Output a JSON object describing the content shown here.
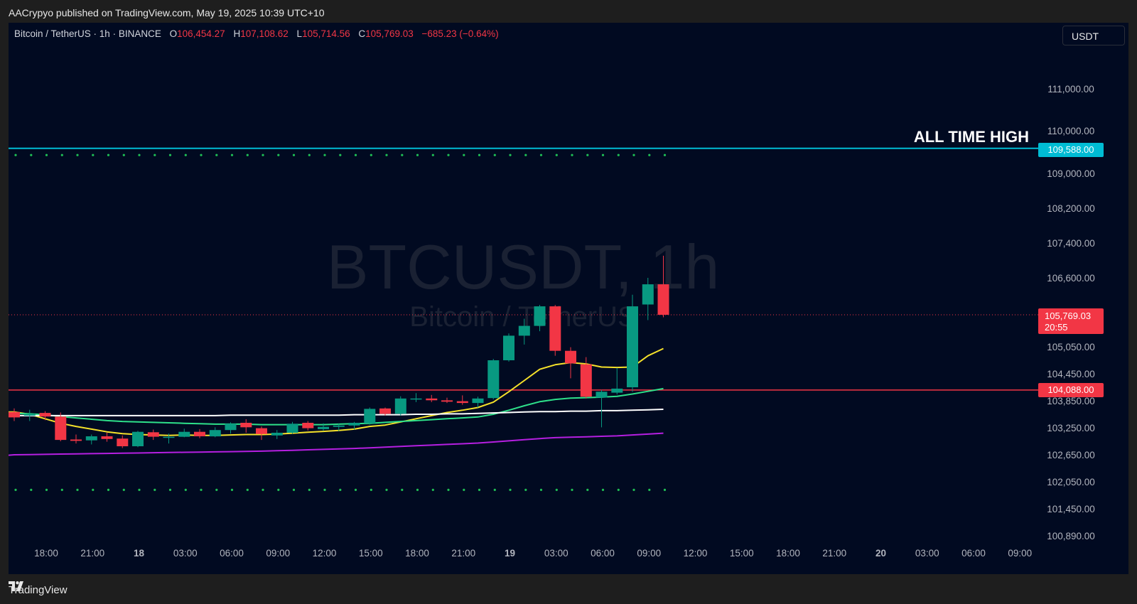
{
  "header": {
    "publisher_line": "AACrypyo published on TradingView.com, May 19, 2025 10:39 UTC+10"
  },
  "legend": {
    "symbol": "Bitcoin / TetherUS · 1h · BINANCE",
    "open_label": "O",
    "open": "106,454.27",
    "high_label": "H",
    "high": "107,108.62",
    "low_label": "L",
    "low": "105,714.56",
    "close_label": "C",
    "close": "105,769.03",
    "change": "−685.23 (−0.64%)"
  },
  "currency_button": "USDT",
  "watermark": {
    "ticker": "BTCUSDT, 1h",
    "name": "Bitcoin / TetherUS"
  },
  "annotation": "ALL TIME HIGH",
  "price_badges": {
    "ath": "109,588.00",
    "last": "105,769.03",
    "countdown": "20:55",
    "support": "104,088.00"
  },
  "footer": {
    "brand": "TradingView"
  },
  "colors": {
    "background": "#010a21",
    "up": "#089981",
    "down": "#f23645",
    "ath_line": "#00bcd4",
    "support_line": "#f23645",
    "ma_yellow": "#f5e12a",
    "ma_green": "#2ee08a",
    "ma_white": "#ffffff",
    "ma_purple": "#b51fe0",
    "dots": "#1fbf55"
  },
  "chart_data": {
    "type": "candlestick",
    "title": "Bitcoin / TetherUS · 1h · BINANCE",
    "y_ticks": [
      111000,
      110000,
      109000,
      108200,
      107400,
      106600,
      105050,
      104450,
      103850,
      103250,
      102650,
      102050,
      101450,
      100890
    ],
    "y_tick_labels": [
      "111,000.00",
      "110,000.00",
      "109,000.00",
      "108,200.00",
      "107,400.00",
      "106,600.00",
      "105,050.00",
      "104,450.00",
      "103,850.00",
      "103,250.00",
      "102,650.00",
      "102,050.00",
      "101,450.00",
      "100,890.00"
    ],
    "x_tick_labels": [
      "18:00",
      "21:00",
      "18",
      "03:00",
      "06:00",
      "09:00",
      "12:00",
      "15:00",
      "18:00",
      "21:00",
      "19",
      "03:00",
      "06:00",
      "09:00",
      "12:00",
      "15:00",
      "18:00",
      "21:00",
      "20",
      "03:00",
      "06:00",
      "09:00"
    ],
    "x_tick_hours": [
      0,
      3,
      6,
      9,
      12,
      15,
      18,
      21,
      24,
      27,
      30,
      33,
      36,
      39,
      42,
      45,
      48,
      51,
      54,
      57,
      60,
      63
    ],
    "horizontal_levels": [
      {
        "price": 109588,
        "label": "109,588.00"
      },
      {
        "price": 104088,
        "label": "104,088.00"
      }
    ],
    "candles": [
      {
        "o": 103600,
        "h": 103680,
        "l": 103400,
        "c": 103480
      },
      {
        "o": 103520,
        "h": 103650,
        "l": 103400,
        "c": 103560
      },
      {
        "o": 103580,
        "h": 103620,
        "l": 103420,
        "c": 103500
      },
      {
        "o": 103500,
        "h": 103590,
        "l": 102950,
        "c": 102980
      },
      {
        "o": 102990,
        "h": 103100,
        "l": 102900,
        "c": 102960
      },
      {
        "o": 102970,
        "h": 103100,
        "l": 102880,
        "c": 103060
      },
      {
        "o": 103060,
        "h": 103140,
        "l": 102940,
        "c": 103000
      },
      {
        "o": 103010,
        "h": 103080,
        "l": 102800,
        "c": 102840
      },
      {
        "o": 102840,
        "h": 103180,
        "l": 102820,
        "c": 103160
      },
      {
        "o": 103150,
        "h": 103210,
        "l": 102980,
        "c": 103050
      },
      {
        "o": 103050,
        "h": 103120,
        "l": 102900,
        "c": 103050
      },
      {
        "o": 103050,
        "h": 103230,
        "l": 103040,
        "c": 103160
      },
      {
        "o": 103160,
        "h": 103220,
        "l": 103020,
        "c": 103060
      },
      {
        "o": 103060,
        "h": 103260,
        "l": 103040,
        "c": 103200
      },
      {
        "o": 103200,
        "h": 103370,
        "l": 103120,
        "c": 103340
      },
      {
        "o": 103360,
        "h": 103440,
        "l": 103140,
        "c": 103260
      },
      {
        "o": 103240,
        "h": 103280,
        "l": 102980,
        "c": 103110
      },
      {
        "o": 103080,
        "h": 103200,
        "l": 103000,
        "c": 103140
      },
      {
        "o": 103140,
        "h": 103380,
        "l": 103120,
        "c": 103340
      },
      {
        "o": 103360,
        "h": 103400,
        "l": 103190,
        "c": 103240
      },
      {
        "o": 103220,
        "h": 103350,
        "l": 103180,
        "c": 103270
      },
      {
        "o": 103270,
        "h": 103340,
        "l": 103180,
        "c": 103300
      },
      {
        "o": 103300,
        "h": 103380,
        "l": 103210,
        "c": 103360
      },
      {
        "o": 103350,
        "h": 103700,
        "l": 103320,
        "c": 103670
      },
      {
        "o": 103680,
        "h": 103700,
        "l": 103520,
        "c": 103560
      },
      {
        "o": 103560,
        "h": 103950,
        "l": 103520,
        "c": 103900
      },
      {
        "o": 103900,
        "h": 104020,
        "l": 103820,
        "c": 103900
      },
      {
        "o": 103900,
        "h": 103980,
        "l": 103820,
        "c": 103860
      },
      {
        "o": 103860,
        "h": 103920,
        "l": 103800,
        "c": 103830
      },
      {
        "o": 103840,
        "h": 103970,
        "l": 103760,
        "c": 103800
      },
      {
        "o": 103800,
        "h": 103940,
        "l": 103700,
        "c": 103900
      },
      {
        "o": 103910,
        "h": 104780,
        "l": 103880,
        "c": 104750
      },
      {
        "o": 104750,
        "h": 105350,
        "l": 104720,
        "c": 105300
      },
      {
        "o": 105300,
        "h": 105680,
        "l": 105100,
        "c": 105520
      },
      {
        "o": 105520,
        "h": 105990,
        "l": 105400,
        "c": 105960
      },
      {
        "o": 105960,
        "h": 105990,
        "l": 104850,
        "c": 104960
      },
      {
        "o": 104960,
        "h": 105040,
        "l": 104350,
        "c": 104680
      },
      {
        "o": 104660,
        "h": 104820,
        "l": 103900,
        "c": 103940
      },
      {
        "o": 103920,
        "h": 104090,
        "l": 103260,
        "c": 104050
      },
      {
        "o": 104030,
        "h": 104580,
        "l": 103990,
        "c": 104120
      },
      {
        "o": 104150,
        "h": 106220,
        "l": 104050,
        "c": 105960
      },
      {
        "o": 106000,
        "h": 106600,
        "l": 105650,
        "c": 106454
      },
      {
        "o": 106454,
        "h": 107108,
        "l": 105714,
        "c": 105769
      }
    ],
    "series": [
      {
        "name": "",
        "color": "#f5e12a",
        "values": [
          103600,
          103550,
          103450,
          103350,
          103280,
          103220,
          103160,
          103120,
          103100,
          103090,
          103080,
          103090,
          103080,
          103080,
          103090,
          103100,
          103100,
          103110,
          103130,
          103150,
          103170,
          103190,
          103220,
          103280,
          103310,
          103380,
          103450,
          103520,
          103590,
          103640,
          103700,
          103820,
          104050,
          104300,
          104550,
          104650,
          104700,
          104670,
          104600,
          104590,
          104600,
          104850,
          105010
        ]
      },
      {
        "name": "",
        "color": "#2ee08a",
        "values": [
          103570,
          103560,
          103540,
          103500,
          103470,
          103440,
          103410,
          103390,
          103380,
          103370,
          103360,
          103350,
          103340,
          103330,
          103330,
          103330,
          103320,
          103320,
          103320,
          103320,
          103320,
          103330,
          103340,
          103350,
          103370,
          103390,
          103410,
          103430,
          103450,
          103470,
          103490,
          103550,
          103640,
          103740,
          103830,
          103880,
          103910,
          103920,
          103930,
          103950,
          104000,
          104060,
          104120
        ]
      },
      {
        "name": "",
        "color": "#ffffff",
        "values": [
          103520,
          103520,
          103520,
          103520,
          103520,
          103520,
          103520,
          103520,
          103520,
          103520,
          103520,
          103520,
          103520,
          103520,
          103530,
          103530,
          103530,
          103530,
          103530,
          103530,
          103530,
          103530,
          103540,
          103540,
          103540,
          103540,
          103550,
          103550,
          103560,
          103560,
          103570,
          103580,
          103590,
          103600,
          103610,
          103610,
          103620,
          103620,
          103630,
          103630,
          103640,
          103650,
          103660
        ]
      },
      {
        "name": "",
        "color": "#b51fe0",
        "values": [
          102650,
          102655,
          102660,
          102665,
          102670,
          102675,
          102680,
          102685,
          102690,
          102695,
          102700,
          102705,
          102710,
          102715,
          102720,
          102725,
          102730,
          102740,
          102750,
          102760,
          102770,
          102780,
          102790,
          102805,
          102820,
          102835,
          102850,
          102865,
          102880,
          102895,
          102910,
          102935,
          102960,
          102985,
          103010,
          103030,
          103040,
          103050,
          103060,
          103070,
          103090,
          103110,
          103130
        ]
      }
    ],
    "dotted_levels": [
      109430,
      101870
    ]
  }
}
